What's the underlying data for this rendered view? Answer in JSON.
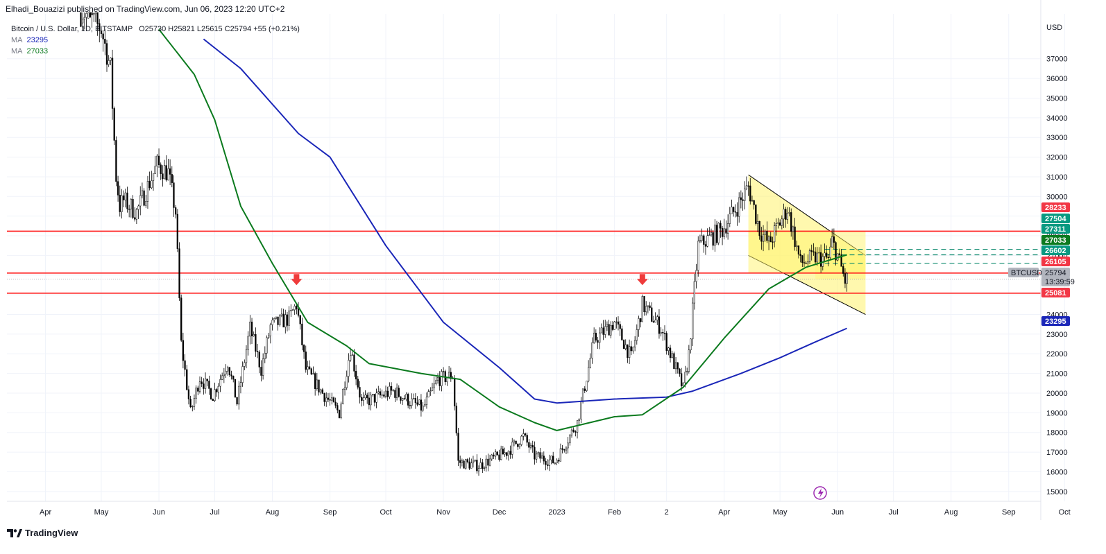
{
  "header": {
    "published_line": "Elhadi_Bouazizi published on TradingView.com, Jun 06, 2023 12:20 UTC+2"
  },
  "legend": {
    "symbol_title": "Bitcoin / U.S. Dollar, 1D, BITSTAMP",
    "ohlc": "O25730 H25821 L25615 C25794 +55 (+0.21%)",
    "ma_label": "MA",
    "ma1_value": "23295",
    "ma2_value": "27033"
  },
  "currency": "USD",
  "brand": "TradingView",
  "colors": {
    "candle": "#000000",
    "ma_fast": "#0b7a1e",
    "ma_slow": "#1a26b8",
    "resistance": "#ff1a1a",
    "channel_fill": "#fff36b",
    "dashed": "#0d8a6e",
    "arrow": "#ef3b3b"
  },
  "chart_data": {
    "type": "candlestick",
    "symbol": "BTCUSD",
    "exchange": "BITSTAMP",
    "ylim": [
      14500,
      39000
    ],
    "y_ticks": [
      15000,
      16000,
      17000,
      18000,
      19000,
      20000,
      21000,
      22000,
      23000,
      24000,
      25000,
      26000,
      27000,
      28000,
      29000,
      30000,
      31000,
      32000,
      33000,
      34000,
      35000,
      36000,
      37000
    ],
    "x_ticks": [
      "Apr",
      "May",
      "Jun",
      "Jul",
      "Aug",
      "Sep",
      "Oct",
      "Nov",
      "Dec",
      "2023",
      "Feb",
      "2",
      "Apr",
      "May",
      "Jun",
      "Jul",
      "Aug",
      "Sep",
      "Oct"
    ],
    "x_start": "2022-03-15",
    "price_path": [
      [
        "2022-04-15",
        40000
      ],
      [
        "2022-05-01",
        38500
      ],
      [
        "2022-05-06",
        36500
      ],
      [
        "2022-05-09",
        31000
      ],
      [
        "2022-05-11",
        29500
      ],
      [
        "2022-05-13",
        29800
      ],
      [
        "2022-05-20",
        29200
      ],
      [
        "2022-05-31",
        31600
      ],
      [
        "2022-06-06",
        31200
      ],
      [
        "2022-06-10",
        29200
      ],
      [
        "2022-06-13",
        22500
      ],
      [
        "2022-06-18",
        19000
      ],
      [
        "2022-06-23",
        20800
      ],
      [
        "2022-06-30",
        19900
      ],
      [
        "2022-07-08",
        21600
      ],
      [
        "2022-07-13",
        19500
      ],
      [
        "2022-07-20",
        23300
      ],
      [
        "2022-07-26",
        21200
      ],
      [
        "2022-07-31",
        23400
      ],
      [
        "2022-08-10",
        23800
      ],
      [
        "2022-08-14",
        24500
      ],
      [
        "2022-08-19",
        21200
      ],
      [
        "2022-08-28",
        20000
      ],
      [
        "2022-09-06",
        19000
      ],
      [
        "2022-09-12",
        22300
      ],
      [
        "2022-09-18",
        19500
      ],
      [
        "2022-10-05",
        20100
      ],
      [
        "2022-10-21",
        19200
      ],
      [
        "2022-10-29",
        20700
      ],
      [
        "2022-11-06",
        20900
      ],
      [
        "2022-11-09",
        16500
      ],
      [
        "2022-11-20",
        16300
      ],
      [
        "2022-12-05",
        17000
      ],
      [
        "2022-12-14",
        17800
      ],
      [
        "2022-12-20",
        16800
      ],
      [
        "2022-12-31",
        16500
      ],
      [
        "2023-01-12",
        18500
      ],
      [
        "2023-01-21",
        22700
      ],
      [
        "2023-02-01",
        23600
      ],
      [
        "2023-02-10",
        21800
      ],
      [
        "2023-02-16",
        24500
      ],
      [
        "2023-02-26",
        23300
      ],
      [
        "2023-03-10",
        20200
      ],
      [
        "2023-03-13",
        22000
      ],
      [
        "2023-03-18",
        27500
      ],
      [
        "2023-03-31",
        28300
      ],
      [
        "2023-04-10",
        29800
      ],
      [
        "2023-04-14",
        30500
      ],
      [
        "2023-04-20",
        28300
      ],
      [
        "2023-04-25",
        27600
      ],
      [
        "2023-05-05",
        29400
      ],
      [
        "2023-05-12",
        26600
      ],
      [
        "2023-05-20",
        26900
      ],
      [
        "2023-05-27",
        26800
      ],
      [
        "2023-05-29",
        27700
      ],
      [
        "2023-06-01",
        27000
      ],
      [
        "2023-06-05",
        25700
      ],
      [
        "2023-06-06",
        25794
      ]
    ],
    "last_candle": {
      "date": "2023-06-06",
      "open": 25730,
      "high": 25821,
      "low": 25615,
      "close": 25794,
      "change": 55,
      "change_pct": 0.21
    },
    "series": [
      {
        "name": "MA",
        "value": 23295,
        "color": "#1a26b8",
        "points": [
          [
            "2022-06-25",
            38000
          ],
          [
            "2022-07-15",
            36500
          ],
          [
            "2022-08-15",
            33200
          ],
          [
            "2022-09-01",
            32000
          ],
          [
            "2022-10-01",
            27500
          ],
          [
            "2022-11-01",
            23600
          ],
          [
            "2022-12-01",
            21300
          ],
          [
            "2022-12-20",
            19700
          ],
          [
            "2023-01-01",
            19500
          ],
          [
            "2023-02-01",
            19700
          ],
          [
            "2023-03-01",
            19800
          ],
          [
            "2023-03-15",
            20100
          ],
          [
            "2023-04-10",
            21000
          ],
          [
            "2023-05-01",
            21800
          ],
          [
            "2023-05-20",
            22600
          ],
          [
            "2023-06-06",
            23295
          ]
        ]
      },
      {
        "name": "MA",
        "value": 27033,
        "color": "#0b7a1e",
        "points": [
          [
            "2022-06-01",
            38500
          ],
          [
            "2022-06-20",
            36200
          ],
          [
            "2022-07-01",
            33900
          ],
          [
            "2022-07-15",
            29500
          ],
          [
            "2022-08-01",
            26600
          ],
          [
            "2022-08-20",
            23600
          ],
          [
            "2022-09-10",
            22400
          ],
          [
            "2022-09-22",
            21500
          ],
          [
            "2022-10-20",
            21000
          ],
          [
            "2022-11-10",
            20700
          ],
          [
            "2022-12-01",
            19300
          ],
          [
            "2022-12-20",
            18500
          ],
          [
            "2023-01-01",
            18100
          ],
          [
            "2023-02-01",
            18800
          ],
          [
            "2023-02-16",
            18900
          ],
          [
            "2023-03-10",
            20300
          ],
          [
            "2023-04-01",
            22800
          ],
          [
            "2023-04-25",
            25300
          ],
          [
            "2023-05-15",
            26400
          ],
          [
            "2023-06-06",
            27033
          ]
        ]
      }
    ],
    "horizontal_levels": [
      28233,
      26105,
      25081
    ],
    "dashed_levels": [
      27311,
      27033,
      26602
    ],
    "channel": {
      "upper": [
        [
          "2023-04-14",
          31100
        ],
        [
          "2023-06-16",
          27000
        ]
      ],
      "lower": [
        [
          "2023-04-14",
          27000
        ],
        [
          "2023-06-16",
          24000
        ]
      ]
    },
    "arrows": [
      [
        "2022-08-14",
        25700
      ],
      [
        "2023-02-16",
        25700
      ]
    ],
    "price_tags": [
      {
        "label": "28233",
        "value": 28233,
        "color": "#f23645"
      },
      {
        "label": "27504",
        "value": 27504,
        "color": "#089981"
      },
      {
        "label": "27311",
        "value": 27311,
        "color": "#089981"
      },
      {
        "label": "27033",
        "value": 27033,
        "color": "#0b7a1e"
      },
      {
        "label": "26602",
        "value": 26602,
        "color": "#089981"
      },
      {
        "label": "26105",
        "value": 26105,
        "color": "#f23645"
      },
      {
        "label": "25794",
        "value": 25794,
        "color": "#b2b5be"
      },
      {
        "label": "13:39:59",
        "value": 25300,
        "color": "#b2b5be"
      },
      {
        "label": "25081",
        "value": 25081,
        "color": "#f23645"
      },
      {
        "label": "23295",
        "value": 23295,
        "color": "#1a26b8"
      }
    ],
    "symbol_tag": "BTCUSD"
  }
}
